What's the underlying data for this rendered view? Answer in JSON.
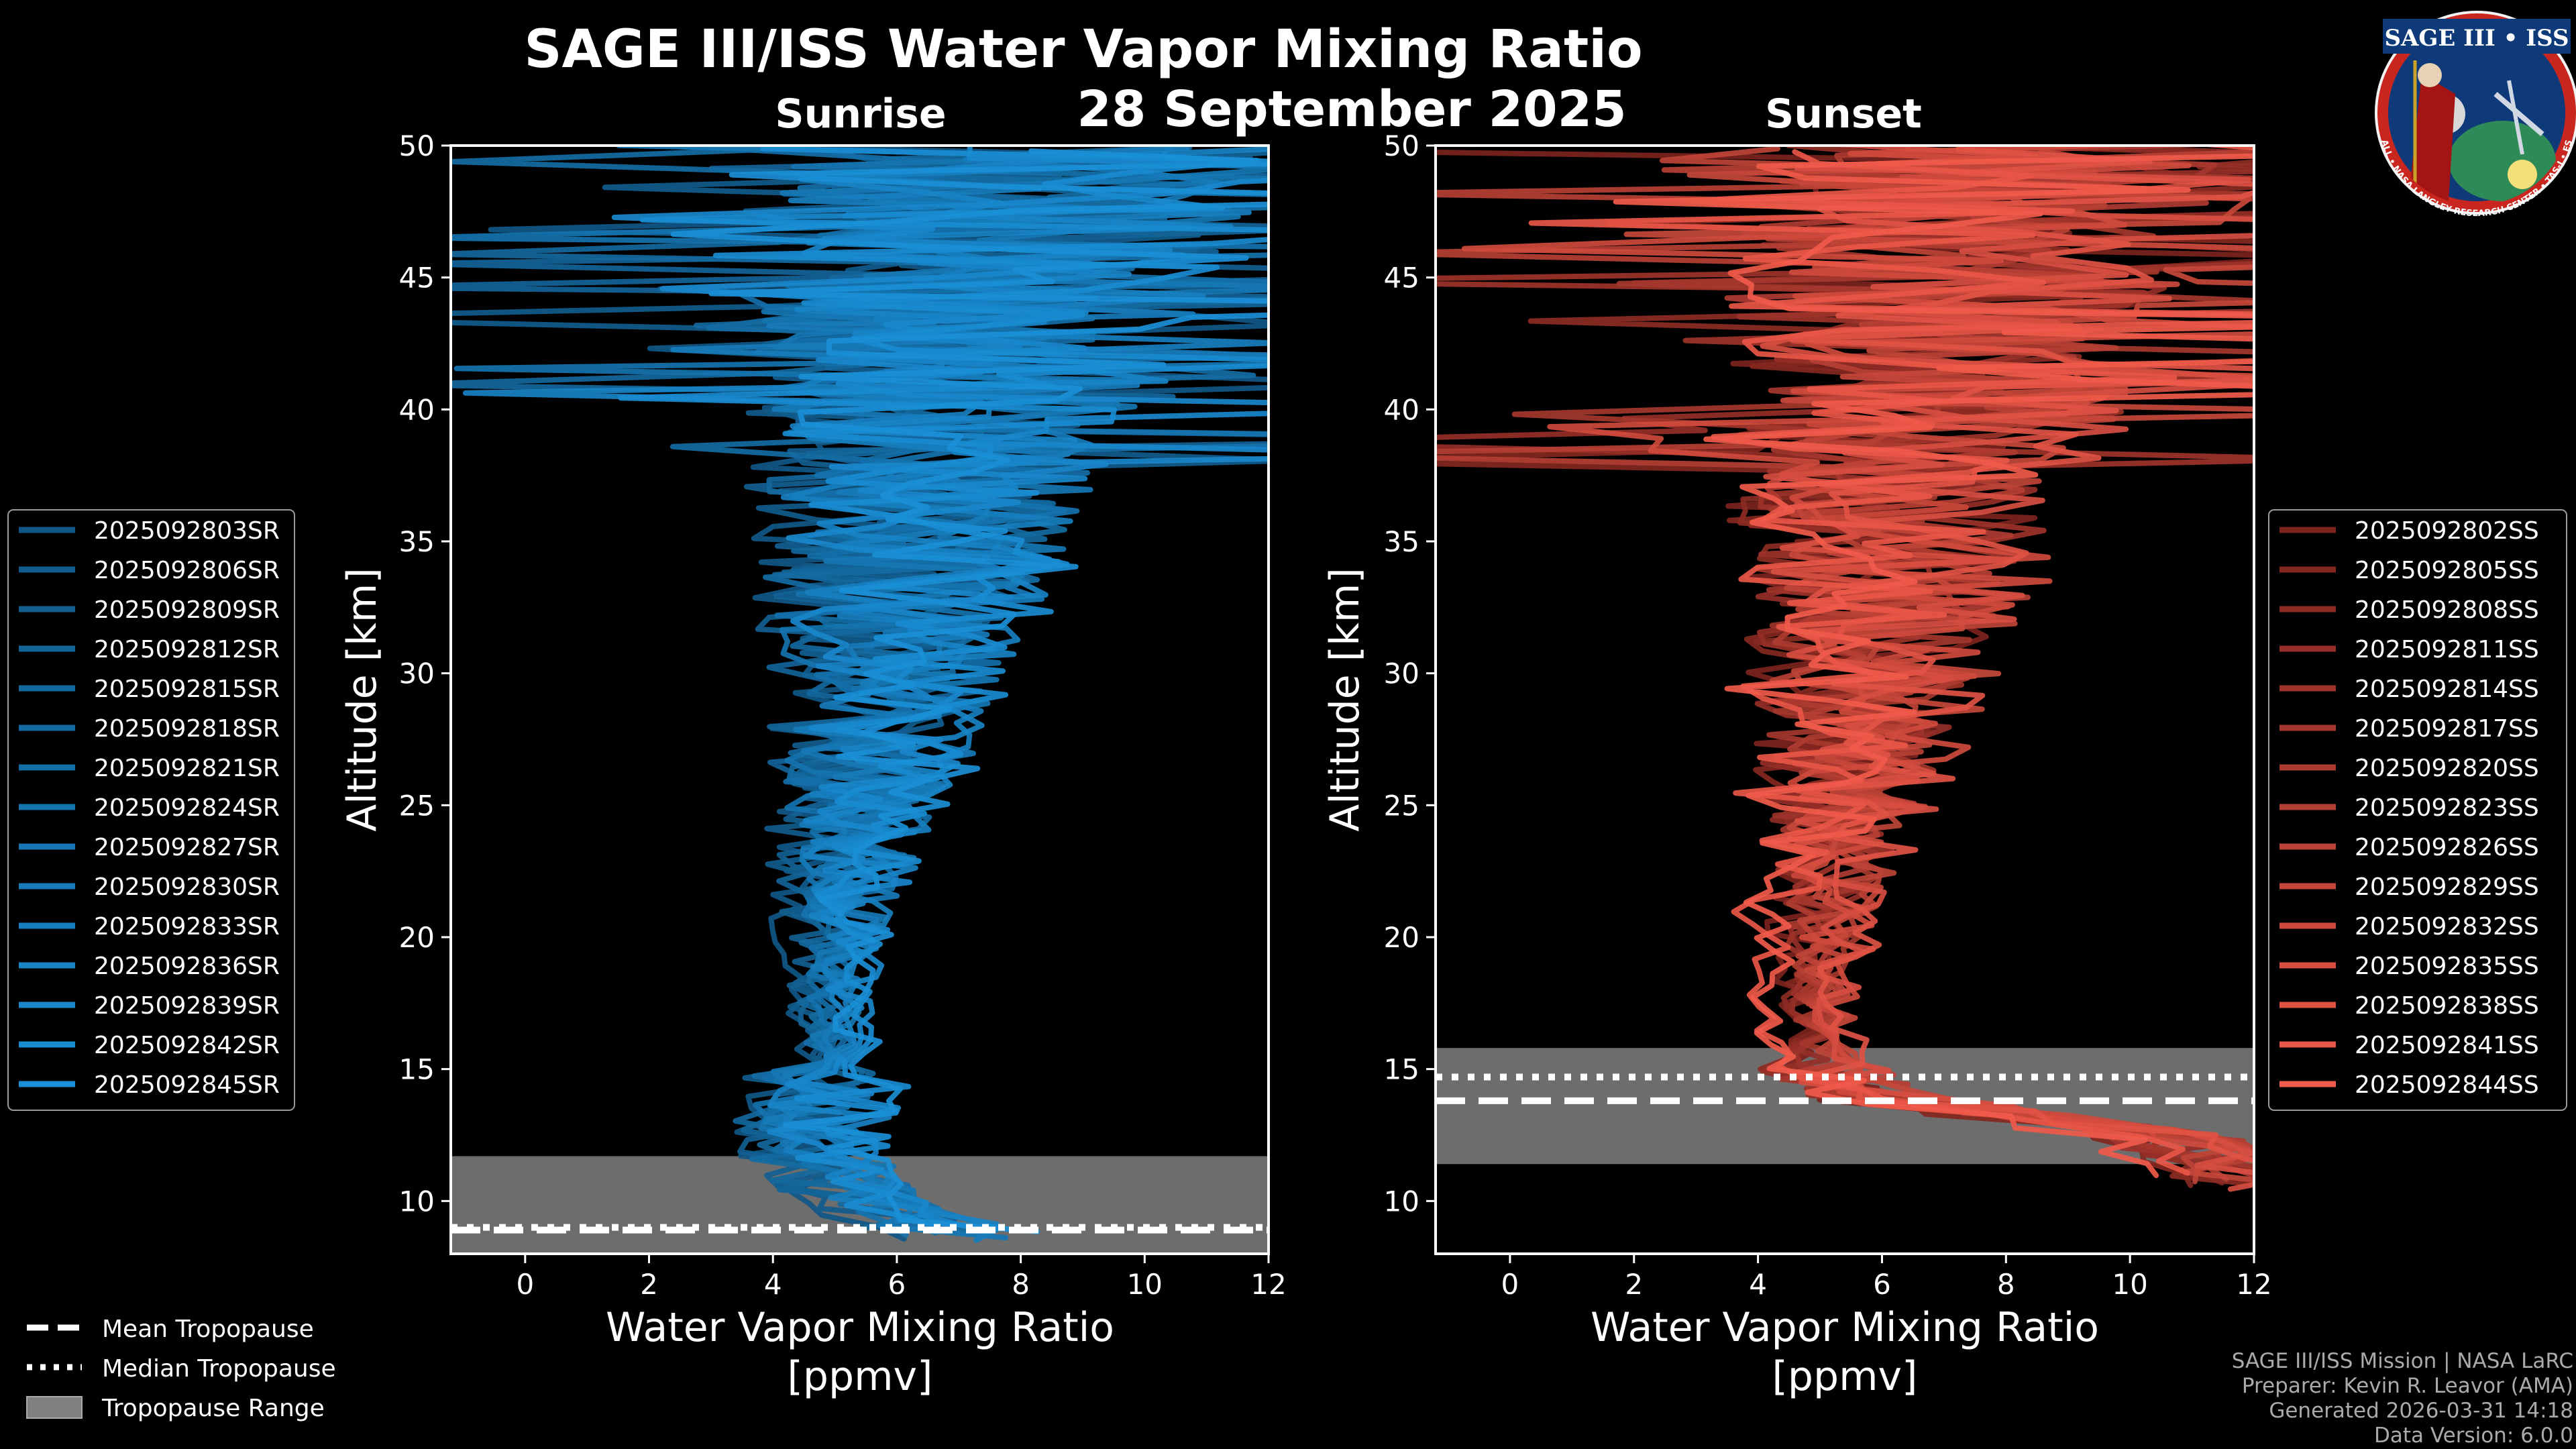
{
  "figure": {
    "title": "SAGE III/ISS Water Vapor Mixing Ratio",
    "date": "28 September 2025",
    "logo_text": "SAGE III • ISS",
    "logo_ring_text": "BALL • NASA LANGLEY RESEARCH CENTER • TAS-I • ESA"
  },
  "credits": {
    "line1": "SAGE III/ISS Mission | NASA LaRC",
    "line2": "Preparer: Kevin R. Leavor (AMA)",
    "line3": "Generated 2026-03-31 14:18",
    "line4": "Data Version: 6.0.0"
  },
  "tropopause_legend": {
    "mean": "Mean Tropopause",
    "median": "Median Tropopause",
    "range": "Tropopause Range"
  },
  "chart_data": [
    {
      "type": "line",
      "panel": "sunrise",
      "title": "Sunrise",
      "xlabel": "Water Vapor Mixing Ratio",
      "xlabel_units": "[ppmv]",
      "ylabel": "Altitude [km]",
      "xlim": [
        -1.2,
        12
      ],
      "ylim": [
        8,
        50
      ],
      "xticks": [
        0,
        2,
        4,
        6,
        8,
        10,
        12
      ],
      "yticks": [
        10,
        15,
        20,
        25,
        30,
        35,
        40,
        45,
        50
      ],
      "color": "#1a8fd6",
      "dark_color": "#0b3a5c",
      "tropopause": {
        "mean": 8.9,
        "median": 9.0,
        "range": [
          8.0,
          11.7
        ]
      },
      "series_names": [
        "2025092803SR",
        "2025092806SR",
        "2025092809SR",
        "2025092812SR",
        "2025092815SR",
        "2025092818SR",
        "2025092821SR",
        "2025092824SR",
        "2025092827SR",
        "2025092830SR",
        "2025092833SR",
        "2025092836SR",
        "2025092839SR",
        "2025092842SR",
        "2025092845SR"
      ],
      "mean_profile": {
        "altitude_km": [
          8.5,
          10,
          12,
          14,
          16,
          18,
          20,
          22,
          25,
          28,
          30,
          33,
          36,
          40,
          43,
          46,
          50
        ],
        "ppmv": [
          7.0,
          5.5,
          4.3,
          4.6,
          4.8,
          4.8,
          4.9,
          5.0,
          5.3,
          5.6,
          5.8,
          6.0,
          6.3,
          6.7,
          7.0,
          7.5,
          8.0
        ]
      }
    },
    {
      "type": "line",
      "panel": "sunset",
      "title": "Sunset",
      "xlabel": "Water Vapor Mixing Ratio",
      "xlabel_units": "[ppmv]",
      "ylabel": "Altitude [km]",
      "xlim": [
        -1.2,
        12
      ],
      "ylim": [
        8,
        50
      ],
      "xticks": [
        0,
        2,
        4,
        6,
        8,
        10,
        12
      ],
      "yticks": [
        10,
        15,
        20,
        25,
        30,
        35,
        40,
        45,
        50
      ],
      "color": "#f05a4a",
      "dark_color": "#3d0606",
      "tropopause": {
        "mean": 13.8,
        "median": 14.7,
        "range": [
          11.4,
          15.8
        ]
      },
      "series_names": [
        "2025092802SS",
        "2025092805SS",
        "2025092808SS",
        "2025092811SS",
        "2025092814SS",
        "2025092817SS",
        "2025092820SS",
        "2025092823SS",
        "2025092826SS",
        "2025092829SS",
        "2025092832SS",
        "2025092835SS",
        "2025092838SS",
        "2025092841SS",
        "2025092844SS"
      ],
      "mean_profile": {
        "altitude_km": [
          10.4,
          12.5,
          14,
          15,
          16,
          18,
          20,
          22,
          25,
          28,
          30,
          33,
          36,
          40,
          43,
          46,
          50
        ],
        "ppmv": [
          12.0,
          10.5,
          5.5,
          5.0,
          4.9,
          4.8,
          4.9,
          5.0,
          5.3,
          5.6,
          5.8,
          6.0,
          6.2,
          6.6,
          7.0,
          7.4,
          8.0
        ]
      }
    }
  ]
}
